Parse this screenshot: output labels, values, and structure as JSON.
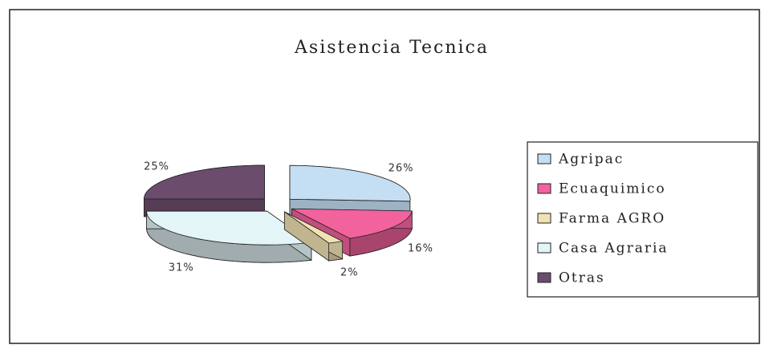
{
  "chart_data": {
    "type": "pie",
    "title": "Asistencia Tecnica",
    "categories": [
      "Agripac",
      "Ecuaquimico",
      "Farma AGRO",
      "Casa Agraria",
      "Otras"
    ],
    "values": [
      26,
      16,
      2,
      31,
      25
    ],
    "value_labels": [
      "26%",
      "16%",
      "2%",
      "31%",
      "25%"
    ],
    "colors": [
      "#c4def4",
      "#f2629c",
      "#f1e2b4",
      "#e4f5f8",
      "#6b4c6c"
    ],
    "legend": "right"
  }
}
